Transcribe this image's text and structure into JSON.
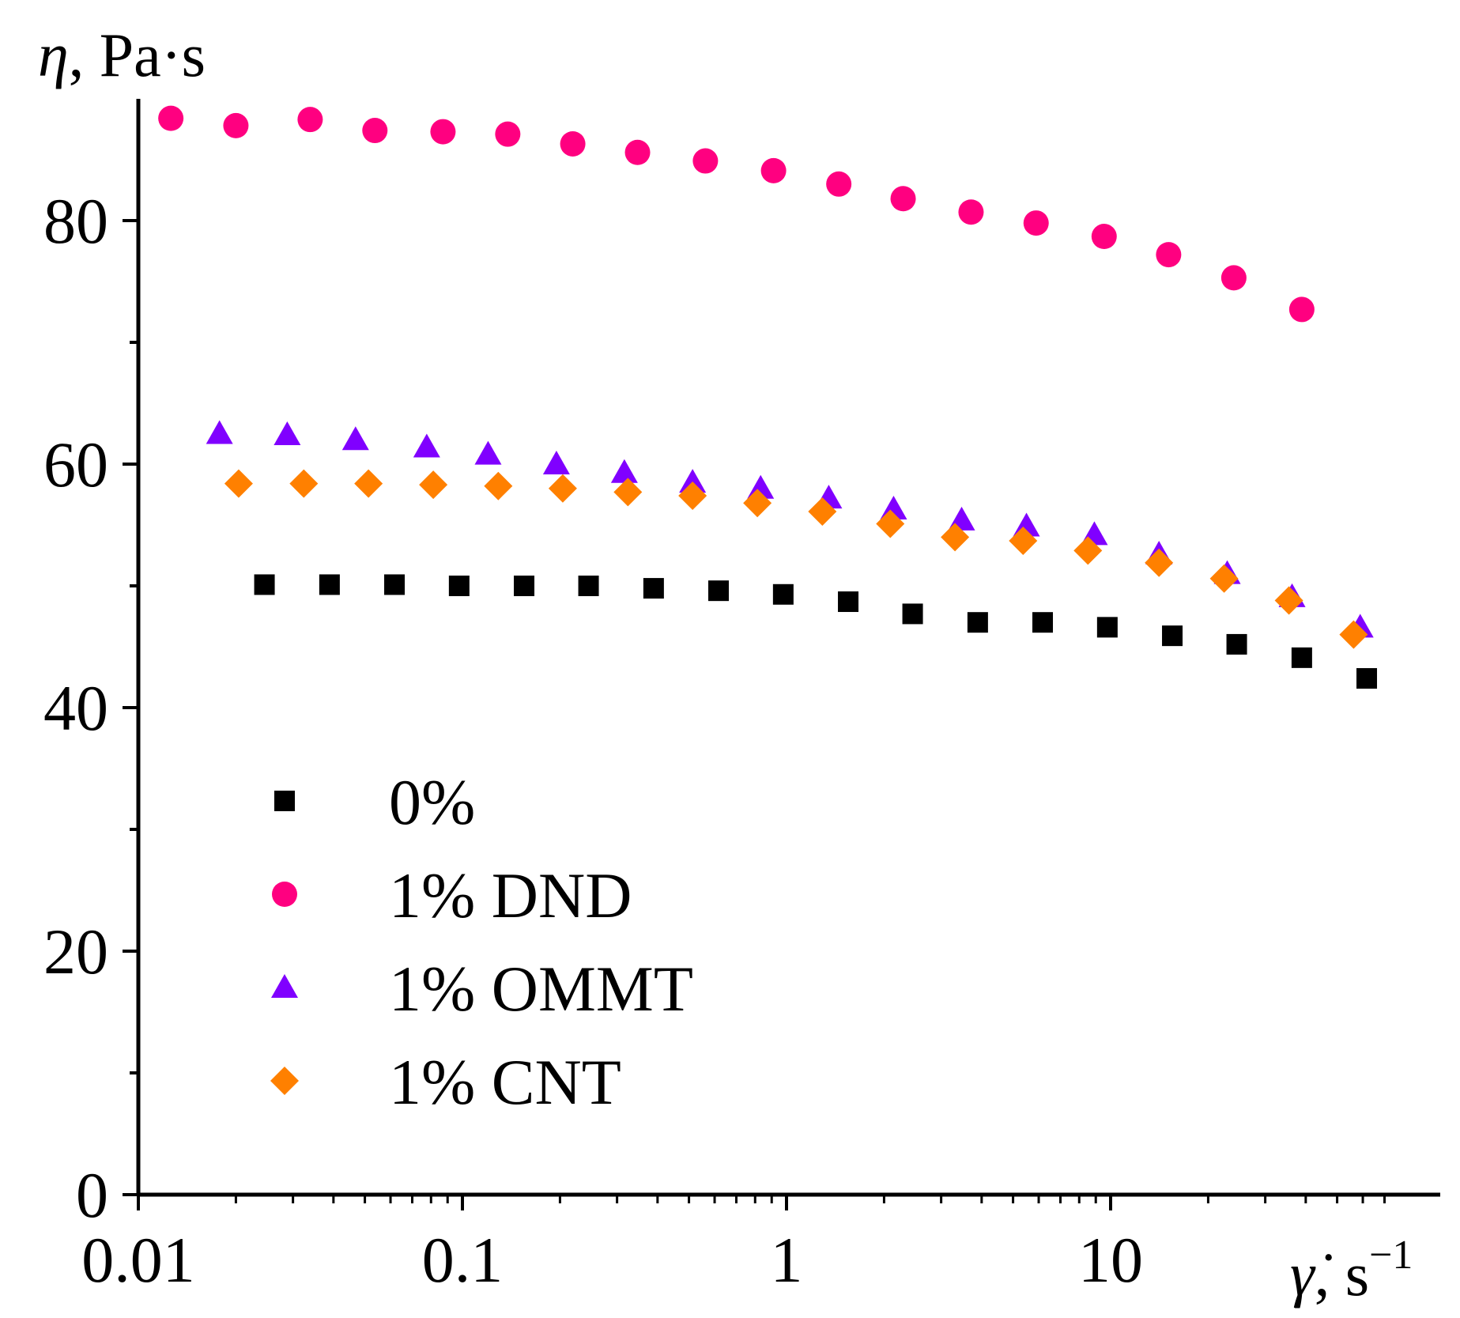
{
  "chart_data": {
    "type": "scatter",
    "x_scale": "log",
    "xlim": [
      0.01,
      70
    ],
    "ylim": [
      0,
      90
    ],
    "x_ticks": [
      {
        "value": 0.01,
        "label": "0.01"
      },
      {
        "value": 0.1,
        "label": "0.1"
      },
      {
        "value": 1,
        "label": "1"
      },
      {
        "value": 10,
        "label": "10"
      }
    ],
    "y_ticks": [
      {
        "value": 0,
        "label": "0"
      },
      {
        "value": 20,
        "label": "20"
      },
      {
        "value": 40,
        "label": "40"
      },
      {
        "value": 60,
        "label": "60"
      },
      {
        "value": 80,
        "label": "80"
      }
    ],
    "y_minor_ticks": [
      10,
      30,
      50,
      70
    ],
    "xlabel": {
      "symbol": "γ̇",
      "unit": ", s",
      "exponent": "−1"
    },
    "ylabel": {
      "symbol": "η",
      "unit": ", Pa·s"
    },
    "grid": false,
    "legend_position": "lower-left",
    "series": [
      {
        "name": "0%",
        "marker": "square",
        "color": "#000000",
        "points": [
          {
            "x": 0.0245,
            "y": 50.1
          },
          {
            "x": 0.0389,
            "y": 50.1
          },
          {
            "x": 0.0617,
            "y": 50.1
          },
          {
            "x": 0.0977,
            "y": 50.0
          },
          {
            "x": 0.155,
            "y": 50.0
          },
          {
            "x": 0.245,
            "y": 50.0
          },
          {
            "x": 0.389,
            "y": 49.8
          },
          {
            "x": 0.617,
            "y": 49.6
          },
          {
            "x": 0.977,
            "y": 49.3
          },
          {
            "x": 1.55,
            "y": 48.7
          },
          {
            "x": 2.45,
            "y": 47.7
          },
          {
            "x": 3.89,
            "y": 47.0
          },
          {
            "x": 6.17,
            "y": 47.0
          },
          {
            "x": 9.77,
            "y": 46.6
          },
          {
            "x": 15.5,
            "y": 45.9
          },
          {
            "x": 24.5,
            "y": 45.2
          },
          {
            "x": 38.9,
            "y": 44.1
          },
          {
            "x": 61.7,
            "y": 42.4
          }
        ]
      },
      {
        "name": "1% DND",
        "marker": "circle",
        "color": "#ff0080",
        "points": [
          {
            "x": 0.0126,
            "y": 88.4
          },
          {
            "x": 0.02,
            "y": 87.8
          },
          {
            "x": 0.0339,
            "y": 88.3
          },
          {
            "x": 0.0537,
            "y": 87.4
          },
          {
            "x": 0.0871,
            "y": 87.3
          },
          {
            "x": 0.138,
            "y": 87.1
          },
          {
            "x": 0.219,
            "y": 86.3
          },
          {
            "x": 0.347,
            "y": 85.6
          },
          {
            "x": 0.562,
            "y": 84.9
          },
          {
            "x": 0.912,
            "y": 84.1
          },
          {
            "x": 1.45,
            "y": 83.0
          },
          {
            "x": 2.29,
            "y": 81.8
          },
          {
            "x": 3.71,
            "y": 80.7
          },
          {
            "x": 5.89,
            "y": 79.8
          },
          {
            "x": 9.55,
            "y": 78.7
          },
          {
            "x": 15.1,
            "y": 77.2
          },
          {
            "x": 24.0,
            "y": 75.3
          },
          {
            "x": 38.9,
            "y": 72.7
          }
        ]
      },
      {
        "name": "1% OMMT",
        "marker": "triangle",
        "color": "#8000ff",
        "points": [
          {
            "x": 0.0178,
            "y": 62.5
          },
          {
            "x": 0.0288,
            "y": 62.4
          },
          {
            "x": 0.0468,
            "y": 62.0
          },
          {
            "x": 0.0776,
            "y": 61.4
          },
          {
            "x": 0.12,
            "y": 60.8
          },
          {
            "x": 0.195,
            "y": 60.0
          },
          {
            "x": 0.316,
            "y": 59.3
          },
          {
            "x": 0.513,
            "y": 58.5
          },
          {
            "x": 0.832,
            "y": 58.0
          },
          {
            "x": 1.35,
            "y": 57.2
          },
          {
            "x": 2.14,
            "y": 56.3
          },
          {
            "x": 3.47,
            "y": 55.4
          },
          {
            "x": 5.5,
            "y": 54.9
          },
          {
            "x": 8.91,
            "y": 54.2
          },
          {
            "x": 14.1,
            "y": 52.6
          },
          {
            "x": 22.9,
            "y": 51.0
          },
          {
            "x": 36.3,
            "y": 49.1
          },
          {
            "x": 58.9,
            "y": 46.6
          }
        ]
      },
      {
        "name": "1% CNT",
        "marker": "diamond",
        "color": "#ff8000",
        "points": [
          {
            "x": 0.0204,
            "y": 58.4
          },
          {
            "x": 0.0324,
            "y": 58.4
          },
          {
            "x": 0.0513,
            "y": 58.4
          },
          {
            "x": 0.0813,
            "y": 58.3
          },
          {
            "x": 0.129,
            "y": 58.2
          },
          {
            "x": 0.204,
            "y": 58.0
          },
          {
            "x": 0.324,
            "y": 57.7
          },
          {
            "x": 0.513,
            "y": 57.4
          },
          {
            "x": 0.813,
            "y": 56.8
          },
          {
            "x": 1.29,
            "y": 56.1
          },
          {
            "x": 2.09,
            "y": 55.1
          },
          {
            "x": 3.31,
            "y": 54.0
          },
          {
            "x": 5.37,
            "y": 53.7
          },
          {
            "x": 8.51,
            "y": 52.9
          },
          {
            "x": 14.1,
            "y": 51.9
          },
          {
            "x": 22.4,
            "y": 50.6
          },
          {
            "x": 35.5,
            "y": 48.8
          },
          {
            "x": 56.2,
            "y": 46.0
          }
        ]
      }
    ]
  }
}
